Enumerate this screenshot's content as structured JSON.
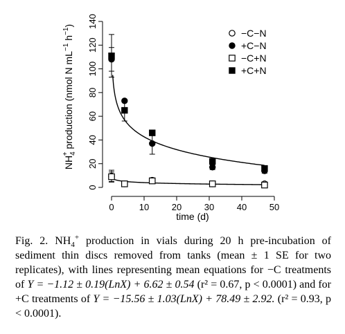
{
  "chart_data": {
    "type": "scatter",
    "xlabel": "time (d)",
    "ylabel_parts": {
      "pre": "NH",
      "sub": "4",
      "sup": "+",
      "post": " production (nmol N mL",
      "exp1": "−1",
      "mid": " h",
      "exp2": "−1",
      "close": ")"
    },
    "xlim": [
      0,
      50
    ],
    "ylim": [
      0,
      140
    ],
    "xticks": [
      "0",
      "10",
      "20",
      "30",
      "40",
      "50"
    ],
    "yticks": [
      "0",
      "20",
      "40",
      "60",
      "80",
      "100",
      "120",
      "140"
    ],
    "grid": false,
    "legend_position": "top-right",
    "series": [
      {
        "name": "−C−N",
        "marker": "open-circle",
        "x": [
          0,
          4,
          12.5,
          31,
          47
        ],
        "y": [
          9.5,
          3,
          6,
          3,
          3
        ],
        "err": [
          5,
          1,
          2,
          1,
          1.5
        ]
      },
      {
        "name": "+C−N",
        "marker": "filled-circle",
        "x": [
          0,
          4,
          12.5,
          31,
          47
        ],
        "y": [
          108,
          73,
          37,
          17,
          14
        ],
        "err": [
          10,
          1,
          9,
          2,
          2
        ]
      },
      {
        "name": "−C+N",
        "marker": "open-square",
        "x": [
          0,
          4,
          12.5,
          31,
          47
        ],
        "y": [
          9,
          3,
          5.5,
          3,
          2
        ],
        "err": [
          4,
          1,
          2,
          1,
          1.5
        ]
      },
      {
        "name": "+C+N",
        "marker": "filled-square",
        "x": [
          0,
          4,
          12.5,
          31,
          47
        ],
        "y": [
          111,
          65,
          46,
          22,
          16
        ],
        "err": [
          18,
          9,
          2,
          2,
          2
        ]
      }
    ],
    "fit_lines": [
      {
        "name": "-C fit",
        "intercept": 6.62,
        "slope_ln": -1.12
      },
      {
        "name": "+C fit",
        "intercept": 78.49,
        "slope_ln": -15.56
      }
    ]
  },
  "caption": {
    "p1": "Fig. 2. NH",
    "p1_sub": "4",
    "p1_sup": "+",
    "p2": " production in vials during 20 h pre-incubation of sediment thin discs removed from tanks (mean ± 1 SE for two replicates), with lines representing mean equations for −C treatments of ",
    "eq1": "Y = −1.12 ± 0.19(LnX) + 6.62 ± 0.54",
    "stat1": " (r² = 0.67, p < 0.0001)",
    "p3": " and for +C treatments of ",
    "eq2": "Y = −15.56 ± 1.03(LnX) + 78.49 ± 2.92.",
    "stat2": " (r² = 0.93, p < 0.0001)."
  }
}
